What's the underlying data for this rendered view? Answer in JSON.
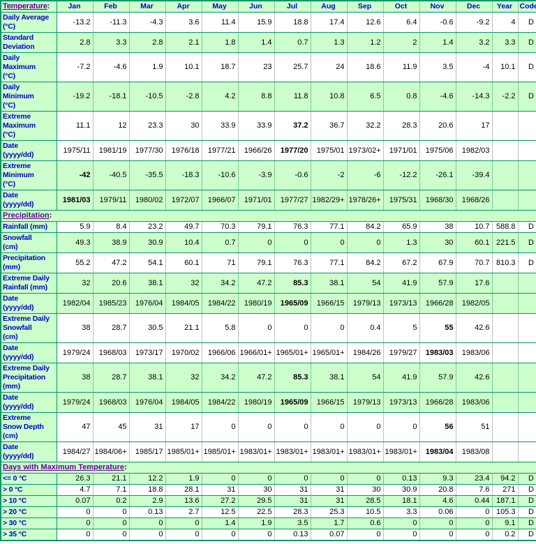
{
  "colors": {
    "table_bg_green": "#CCFFCC",
    "grid_green": "#009966",
    "divider_gray_on_white": "#BFBFBF",
    "divider_green_on_green": "#7FC89A",
    "row_label_blue": "#0000CC",
    "section_link_purple": "#660099",
    "value_text": "#000000"
  },
  "header": {
    "section_title": "Temperature",
    "suffix": ":",
    "months": [
      "Jan",
      "Feb",
      "Mar",
      "Apr",
      "May",
      "Jun",
      "Jul",
      "Aug",
      "Sep",
      "Oct",
      "Nov",
      "Dec"
    ],
    "year_label": "Year",
    "code_label": "Code"
  },
  "rows": [
    {
      "kind": "data",
      "bg": "white",
      "label_lines": [
        "Daily Average",
        "(°C)"
      ],
      "values": [
        "-13.2",
        "-11.3",
        "-4.3",
        "3.6",
        "11.4",
        "15.9",
        "18.8",
        "17.4",
        "12.6",
        "6.4",
        "-0.6",
        "-9.2"
      ],
      "year": "4",
      "code": "D",
      "bold": []
    },
    {
      "kind": "data",
      "bg": "green",
      "label_lines": [
        "Standard",
        "Deviation"
      ],
      "values": [
        "2.8",
        "3.3",
        "2.8",
        "2.1",
        "1.8",
        "1.4",
        "0.7",
        "1.3",
        "1.2",
        "2",
        "1.4",
        "3.2"
      ],
      "year": "3.3",
      "code": "D",
      "bold": []
    },
    {
      "kind": "data",
      "bg": "white",
      "label_lines": [
        "Daily",
        "Maximum",
        "(°C)"
      ],
      "values": [
        "-7.2",
        "-4.6",
        "1.9",
        "10.1",
        "18.7",
        "23",
        "25.7",
        "24",
        "18.6",
        "11.9",
        "3.5",
        "-4"
      ],
      "year": "10.1",
      "code": "D",
      "bold": []
    },
    {
      "kind": "data",
      "bg": "green",
      "label_lines": [
        "Daily",
        "Minimum",
        "(°C)"
      ],
      "values": [
        "-19.2",
        "-18.1",
        "-10.5",
        "-2.8",
        "4.2",
        "8.8",
        "11.8",
        "10.8",
        "6.5",
        "0.8",
        "-4.6",
        "-14.3"
      ],
      "year": "-2.2",
      "code": "D",
      "bold": []
    },
    {
      "kind": "data",
      "bg": "white",
      "label_lines": [
        "Extreme",
        "Maximum",
        "(°C)"
      ],
      "values": [
        "11.1",
        "12",
        "23.3",
        "30",
        "33.9",
        "33.9",
        "37.2",
        "36.7",
        "32.2",
        "28.3",
        "20.6",
        "17"
      ],
      "year": "",
      "code": "",
      "bold": [
        6
      ]
    },
    {
      "kind": "data",
      "bg": "white",
      "label_lines": [
        "Date",
        "(yyyy/dd)"
      ],
      "values": [
        "1975/11",
        "1981/19",
        "1977/30",
        "1976/18",
        "1977/21",
        "1966/26",
        "1977/20",
        "1975/01",
        "1973/02+",
        "1971/01",
        "1975/06",
        "1982/03"
      ],
      "year": "",
      "code": "",
      "bold": [
        6
      ]
    },
    {
      "kind": "data",
      "bg": "green",
      "label_lines": [
        "Extreme",
        "Minimum",
        "(°C)"
      ],
      "values": [
        "-42",
        "-40.5",
        "-35.5",
        "-18.3",
        "-10.6",
        "-3.9",
        "-0.6",
        "-2",
        "-6",
        "-12.2",
        "-26.1",
        "-39.4"
      ],
      "year": "",
      "code": "",
      "bold": [
        0
      ]
    },
    {
      "kind": "data",
      "bg": "green",
      "label_lines": [
        "Date",
        "(yyyy/dd)"
      ],
      "values": [
        "1981/03",
        "1979/11",
        "1980/02",
        "1972/07",
        "1966/07",
        "1971/01",
        "1977/27",
        "1982/29+",
        "1978/26+",
        "1975/31",
        "1968/30",
        "1968/26"
      ],
      "year": "",
      "code": "",
      "bold": [
        0
      ]
    },
    {
      "kind": "section",
      "name": "precipitation",
      "title": "Precipitation",
      "suffix": ":"
    },
    {
      "kind": "data",
      "bg": "white",
      "label_lines": [
        "Rainfall (mm)"
      ],
      "values": [
        "5.9",
        "8.4",
        "23.2",
        "49.7",
        "70.3",
        "79.1",
        "76.3",
        "77.1",
        "84.2",
        "65.9",
        "38",
        "10.7"
      ],
      "year": "588.8",
      "code": "D",
      "bold": []
    },
    {
      "kind": "data",
      "bg": "green",
      "label_lines": [
        "Snowfall",
        "(cm)"
      ],
      "values": [
        "49.3",
        "38.9",
        "30.9",
        "10.4",
        "0.7",
        "0",
        "0",
        "0",
        "0",
        "1.3",
        "30",
        "60.1"
      ],
      "year": "221.5",
      "code": "D",
      "bold": []
    },
    {
      "kind": "data",
      "bg": "white",
      "label_lines": [
        "Precipitation",
        "(mm)"
      ],
      "values": [
        "55.2",
        "47.2",
        "54.1",
        "60.1",
        "71",
        "79.1",
        "76.3",
        "77.1",
        "84.2",
        "67.2",
        "67.9",
        "70.7"
      ],
      "year": "810.3",
      "code": "D",
      "bold": []
    },
    {
      "kind": "data",
      "bg": "green",
      "label_lines": [
        "Extreme Daily",
        "Rainfall (mm)"
      ],
      "values": [
        "32",
        "20.6",
        "38.1",
        "32",
        "34.2",
        "47.2",
        "85.3",
        "38.1",
        "54",
        "41.9",
        "57.9",
        "17.6"
      ],
      "year": "",
      "code": "",
      "bold": [
        6
      ]
    },
    {
      "kind": "data",
      "bg": "green",
      "label_lines": [
        "Date",
        "(yyyy/dd)"
      ],
      "values": [
        "1982/04",
        "1985/23",
        "1976/04",
        "1984/05",
        "1984/22",
        "1980/19",
        "1965/09",
        "1966/15",
        "1979/13",
        "1973/13",
        "1966/28",
        "1982/05"
      ],
      "year": "",
      "code": "",
      "bold": [
        6
      ]
    },
    {
      "kind": "data",
      "bg": "white",
      "label_lines": [
        "Extreme Daily",
        "Snowfall",
        "(cm)"
      ],
      "values": [
        "38",
        "28.7",
        "30.5",
        "21.1",
        "5.8",
        "0",
        "0",
        "0",
        "0.4",
        "5",
        "55",
        "42.6"
      ],
      "year": "",
      "code": "",
      "bold": [
        10
      ]
    },
    {
      "kind": "data",
      "bg": "white",
      "label_lines": [
        "Date",
        "(yyyy/dd)"
      ],
      "values": [
        "1979/24",
        "1968/03",
        "1973/17",
        "1970/02",
        "1966/06",
        "1966/01+",
        "1965/01+",
        "1965/01+",
        "1984/26",
        "1979/27",
        "1983/03",
        "1983/06"
      ],
      "year": "",
      "code": "",
      "bold": [
        10
      ]
    },
    {
      "kind": "data",
      "bg": "green",
      "label_lines": [
        "Extreme Daily",
        "Precipitation",
        "(mm)"
      ],
      "values": [
        "38",
        "28.7",
        "38.1",
        "32",
        "34.2",
        "47.2",
        "85.3",
        "38.1",
        "54",
        "41.9",
        "57.9",
        "42.6"
      ],
      "year": "",
      "code": "",
      "bold": [
        6
      ]
    },
    {
      "kind": "data",
      "bg": "green",
      "label_lines": [
        "Date",
        "(yyyy/dd)"
      ],
      "values": [
        "1979/24",
        "1968/03",
        "1976/04",
        "1984/05",
        "1984/22",
        "1980/19",
        "1965/09",
        "1966/15",
        "1979/13",
        "1973/13",
        "1966/28",
        "1983/06"
      ],
      "year": "",
      "code": "",
      "bold": [
        6
      ]
    },
    {
      "kind": "data",
      "bg": "white",
      "label_lines": [
        "Extreme",
        "Snow Depth",
        "(cm)"
      ],
      "values": [
        "47",
        "45",
        "31",
        "17",
        "0",
        "0",
        "0",
        "0",
        "0",
        "0",
        "56",
        "51"
      ],
      "year": "",
      "code": "",
      "bold": [
        10
      ]
    },
    {
      "kind": "data",
      "bg": "white",
      "label_lines": [
        "Date",
        "(yyyy/dd)"
      ],
      "values": [
        "1984/27",
        "1984/06+",
        "1985/17",
        "1985/01+",
        "1985/01+",
        "1983/01+",
        "1983/01+",
        "1983/01+",
        "1983/01+",
        "1983/01+",
        "1983/04",
        "1983/08"
      ],
      "year": "",
      "code": "",
      "bold": [
        10
      ]
    },
    {
      "kind": "section",
      "name": "days-with-maximum-temperature",
      "title": "Days with Maximum Temperature",
      "suffix": ":"
    },
    {
      "kind": "data",
      "bg": "green",
      "label_lines": [
        "<= 0 °C"
      ],
      "values": [
        "26.3",
        "21.1",
        "12.2",
        "1.9",
        "0",
        "0",
        "0",
        "0",
        "0",
        "0.13",
        "9.3",
        "23.4"
      ],
      "year": "94.2",
      "code": "D",
      "bold": []
    },
    {
      "kind": "data",
      "bg": "white",
      "label_lines": [
        "> 0 °C"
      ],
      "values": [
        "4.7",
        "7.1",
        "18.8",
        "28.1",
        "31",
        "30",
        "31",
        "31",
        "30",
        "30.9",
        "20.8",
        "7.6"
      ],
      "year": "271",
      "code": "D",
      "bold": []
    },
    {
      "kind": "data",
      "bg": "green",
      "label_lines": [
        "> 10 °C"
      ],
      "values": [
        "0.07",
        "0.2",
        "2.9",
        "13.6",
        "27.2",
        "29.5",
        "31",
        "31",
        "28.5",
        "18.1",
        "4.6",
        "0.44"
      ],
      "year": "187.1",
      "code": "D",
      "bold": []
    },
    {
      "kind": "data",
      "bg": "white",
      "label_lines": [
        "> 20 °C"
      ],
      "values": [
        "0",
        "0",
        "0.13",
        "2.7",
        "12.5",
        "22.5",
        "28.3",
        "25.3",
        "10.5",
        "3.3",
        "0.06",
        "0"
      ],
      "year": "105.3",
      "code": "D",
      "bold": []
    },
    {
      "kind": "data",
      "bg": "green",
      "label_lines": [
        "> 30 °C"
      ],
      "values": [
        "0",
        "0",
        "0",
        "0",
        "1.4",
        "1.9",
        "3.5",
        "1.7",
        "0.6",
        "0",
        "0",
        "0"
      ],
      "year": "9.1",
      "code": "D",
      "bold": []
    },
    {
      "kind": "data",
      "bg": "white",
      "label_lines": [
        "> 35 °C"
      ],
      "values": [
        "0",
        "0",
        "0",
        "0",
        "0",
        "0",
        "0.13",
        "0.07",
        "0",
        "0",
        "0",
        "0"
      ],
      "year": "0.2",
      "code": "D",
      "bold": []
    }
  ]
}
